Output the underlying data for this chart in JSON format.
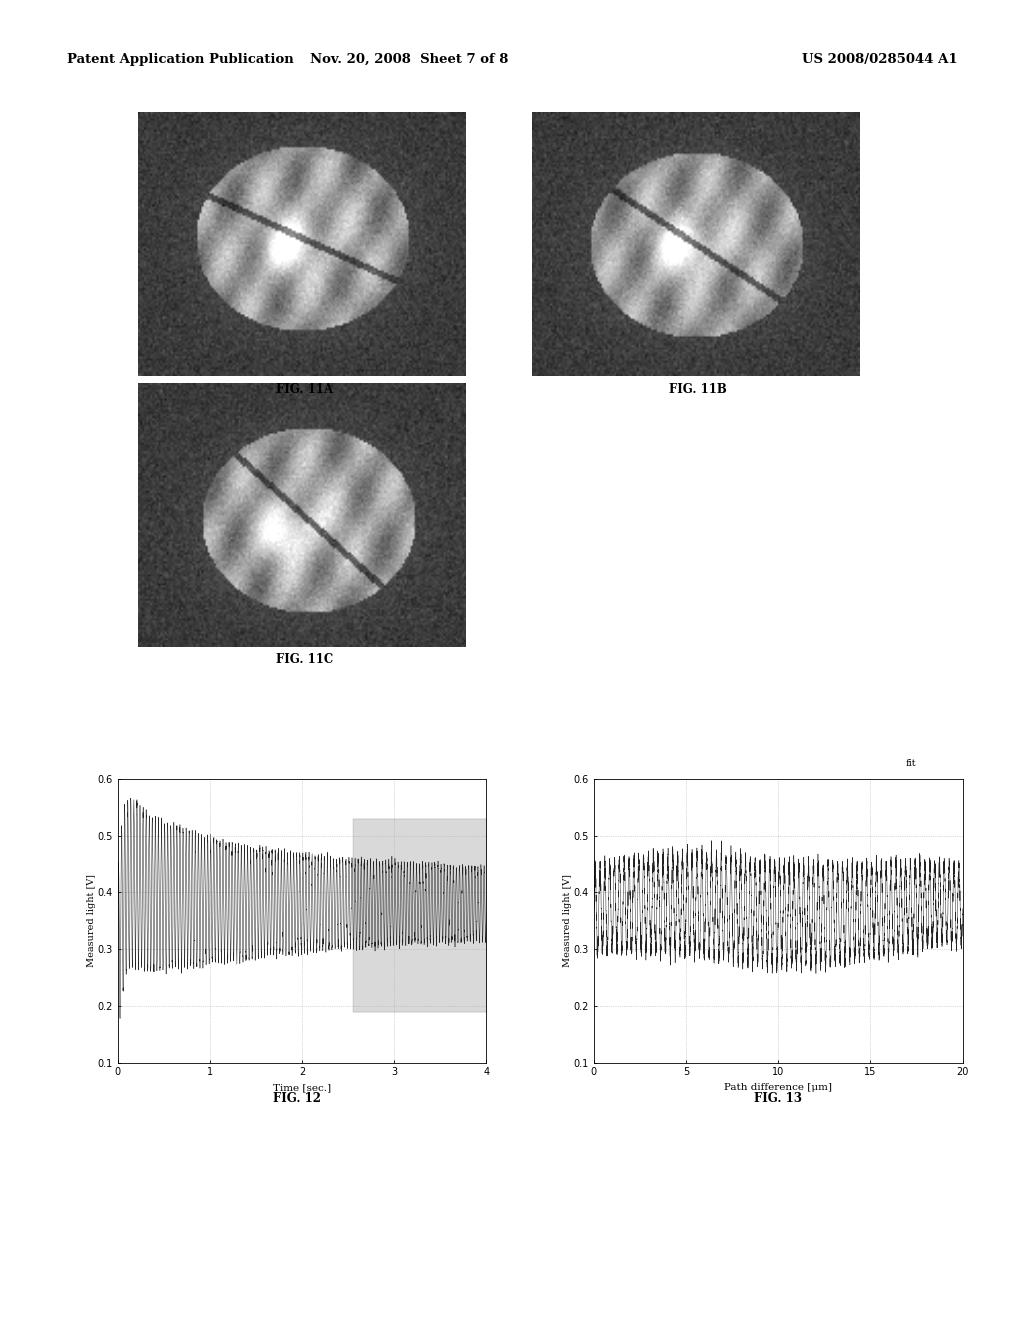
{
  "page_title_left": "Patent Application Publication",
  "page_title_mid": "Nov. 20, 2008  Sheet 7 of 8",
  "page_title_right": "US 2008/0285044 A1",
  "fig11a_label": "FIG. 11A",
  "fig11b_label": "FIG. 11B",
  "fig11c_label": "FIG. 11C",
  "fig12_label": "FIG. 12",
  "fig13_label": "FIG. 13",
  "fig13_top_label": "fit",
  "fig12_xlabel": "Time [sec.]",
  "fig12_ylabel": "Measured light [V]",
  "fig13_xlabel": "Path difference [μm]",
  "fig13_ylabel": "Measured light [V]",
  "fig12_xlim": [
    0,
    4
  ],
  "fig12_ylim": [
    0.1,
    0.6
  ],
  "fig12_xticks": [
    0,
    1,
    2,
    3,
    4
  ],
  "fig12_yticks": [
    0.1,
    0.2,
    0.3,
    0.4,
    0.5,
    0.6
  ],
  "fig13_xlim": [
    0,
    20
  ],
  "fig13_ylim": [
    0.1,
    0.6
  ],
  "fig13_xticks": [
    0,
    5,
    10,
    15,
    20
  ],
  "fig13_yticks": [
    0.1,
    0.2,
    0.3,
    0.4,
    0.5,
    0.6
  ],
  "background_color": "#ffffff",
  "text_color": "#000000",
  "grid_color": "#aaaaaa"
}
